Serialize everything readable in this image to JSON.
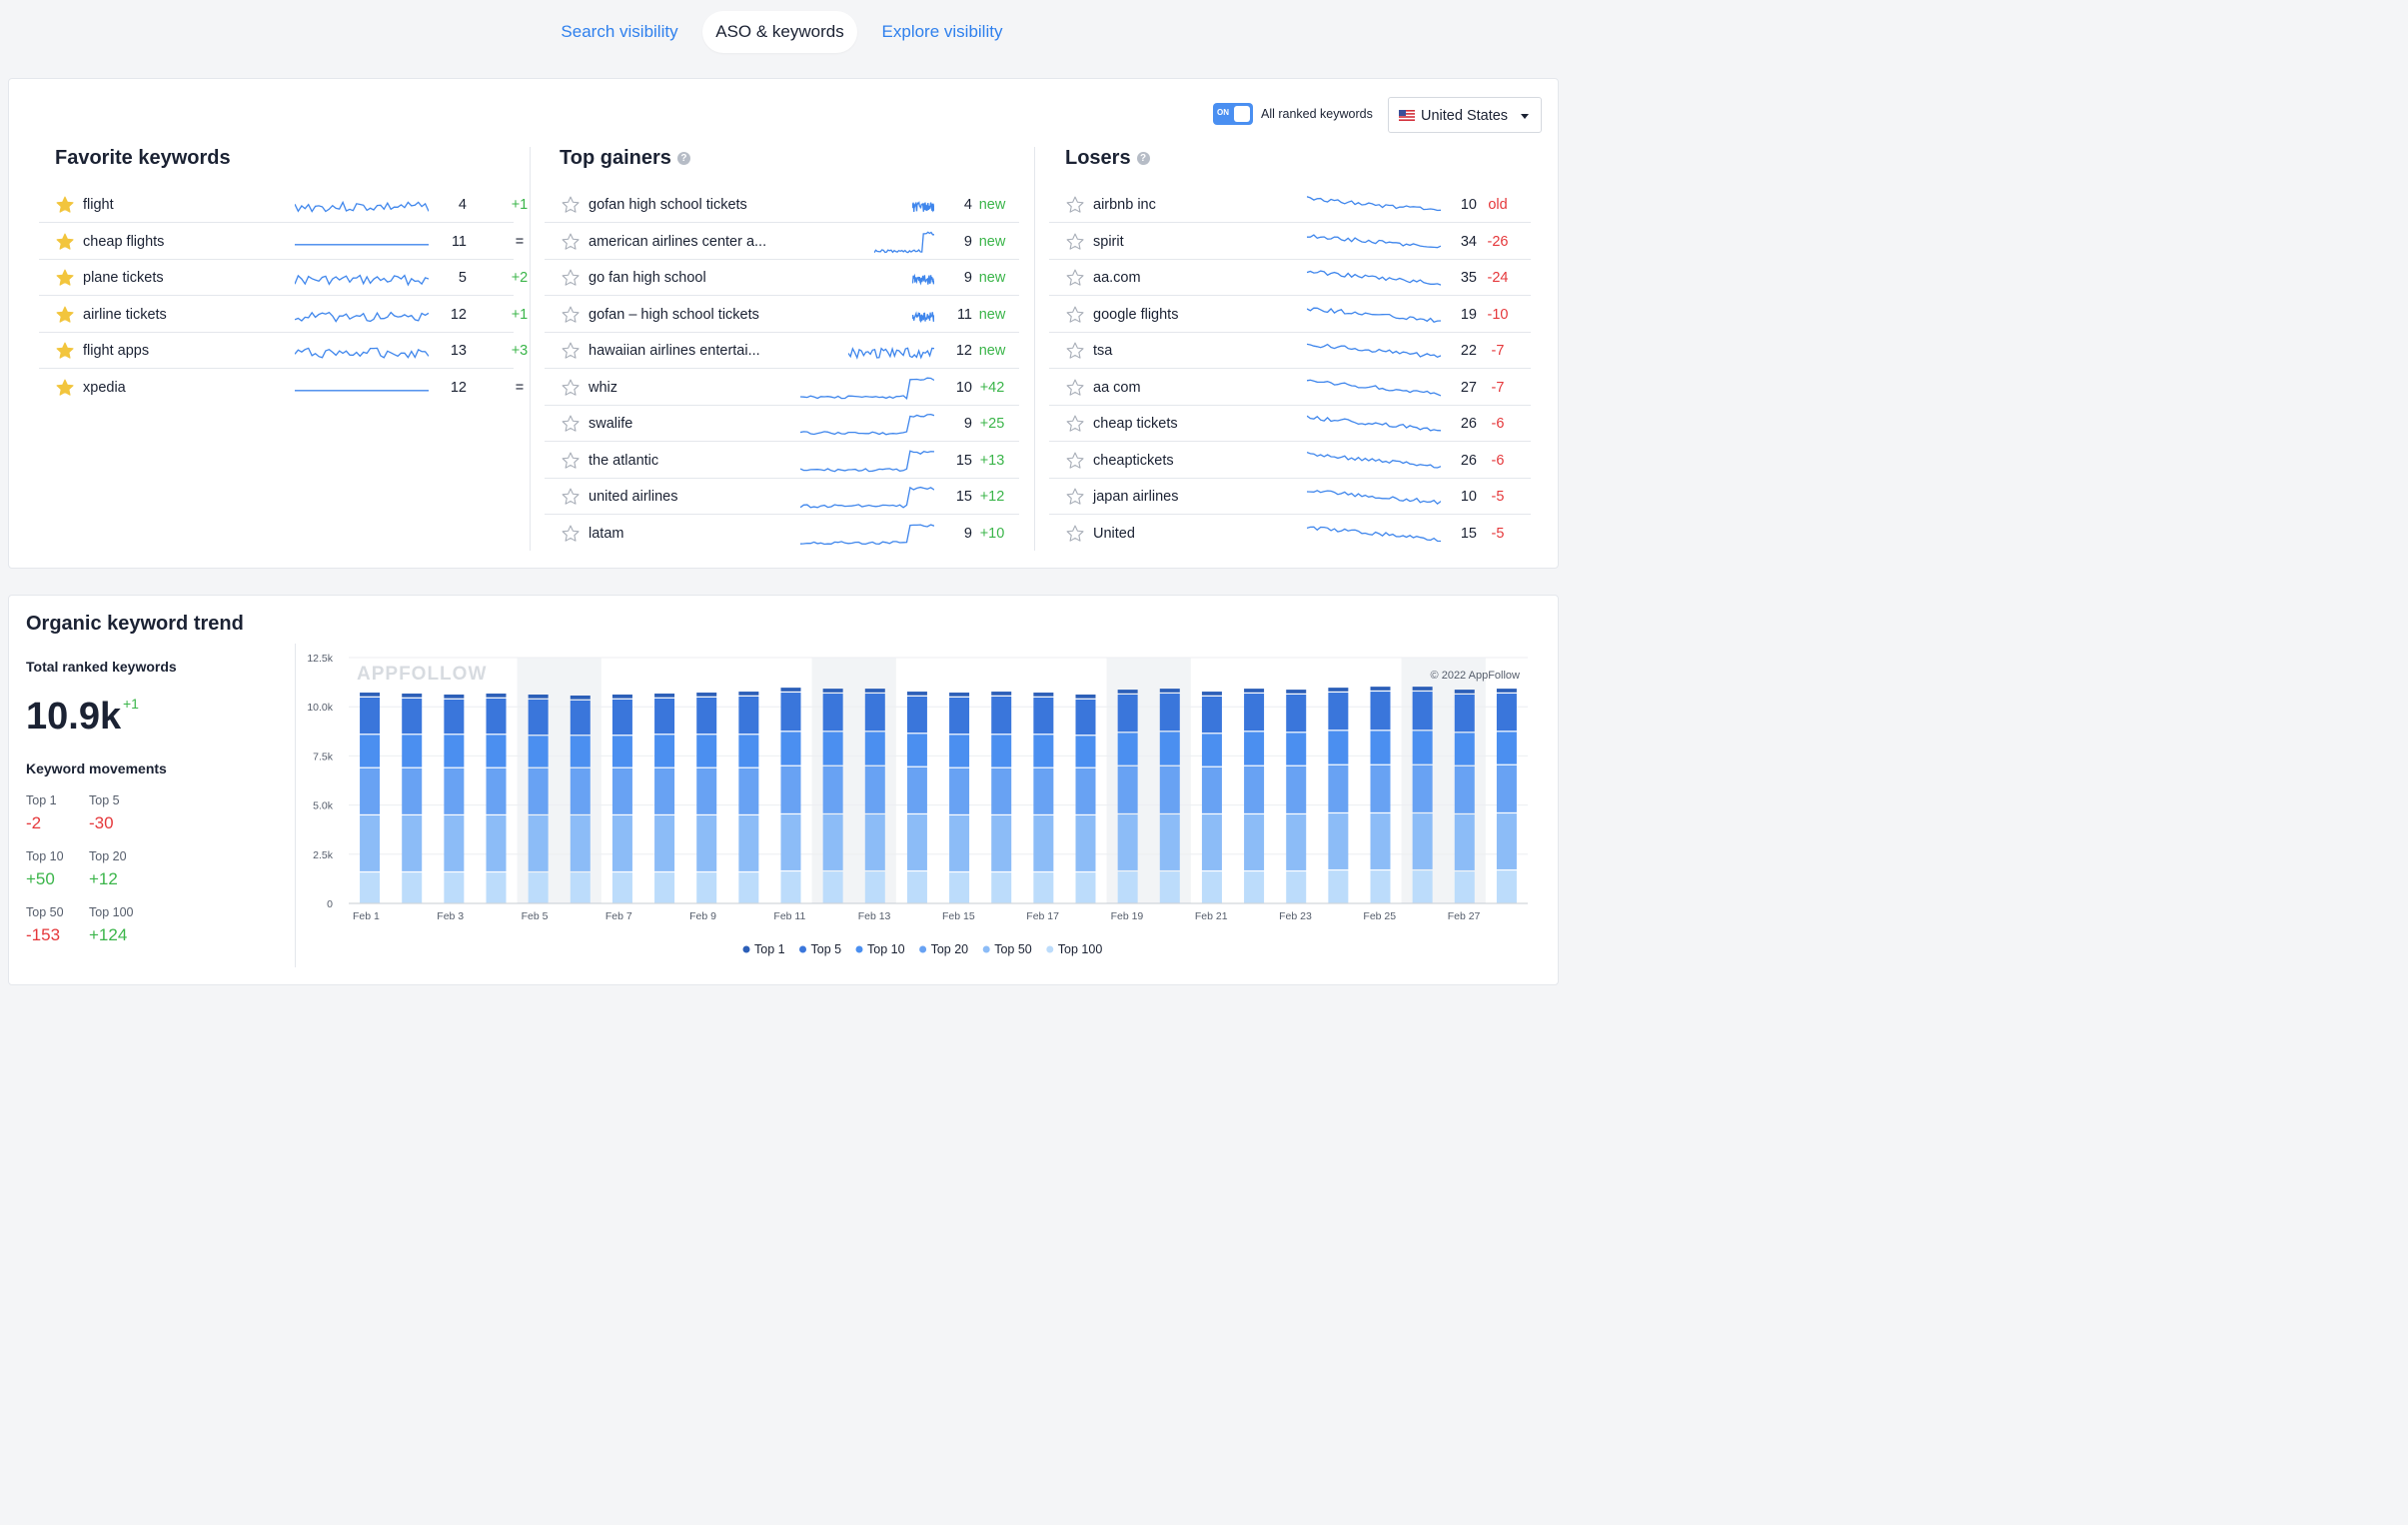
{
  "tabs": [
    {
      "label": "Search visibility",
      "active": false
    },
    {
      "label": "ASO & keywords",
      "active": true
    },
    {
      "label": "Explore visibility",
      "active": false
    }
  ],
  "toolbar": {
    "toggle_state": "ON",
    "toggle_label": "All ranked keywords",
    "country": "United States"
  },
  "favorites": {
    "title": "Favorite keywords",
    "rows": [
      {
        "keyword": "flight",
        "position": "4",
        "change": "+1",
        "tone": "green",
        "starred": true
      },
      {
        "keyword": "cheap flights",
        "position": "11",
        "change": "=",
        "tone": "dark",
        "starred": true
      },
      {
        "keyword": "plane tickets",
        "position": "5",
        "change": "+2",
        "tone": "green",
        "starred": true
      },
      {
        "keyword": "airline tickets",
        "position": "12",
        "change": "+1",
        "tone": "green",
        "starred": true
      },
      {
        "keyword": "flight apps",
        "position": "13",
        "change": "+3",
        "tone": "green",
        "starred": true
      },
      {
        "keyword": "xpedia",
        "position": "12",
        "change": "=",
        "tone": "dark",
        "starred": true
      }
    ]
  },
  "gainers": {
    "title": "Top gainers",
    "rows": [
      {
        "keyword": "gofan high school tickets",
        "position": "4",
        "change": "new",
        "tone": "green"
      },
      {
        "keyword": "american airlines center a...",
        "position": "9",
        "change": "new",
        "tone": "green"
      },
      {
        "keyword": "go fan high school",
        "position": "9",
        "change": "new",
        "tone": "green"
      },
      {
        "keyword": "gofan – high school tickets",
        "position": "11",
        "change": "new",
        "tone": "green"
      },
      {
        "keyword": "hawaiian airlines entertai...",
        "position": "12",
        "change": "new",
        "tone": "green"
      },
      {
        "keyword": "whiz",
        "position": "10",
        "change": "+42",
        "tone": "green"
      },
      {
        "keyword": "swalife",
        "position": "9",
        "change": "+25",
        "tone": "green"
      },
      {
        "keyword": "the atlantic",
        "position": "15",
        "change": "+13",
        "tone": "green"
      },
      {
        "keyword": "united airlines",
        "position": "15",
        "change": "+12",
        "tone": "green"
      },
      {
        "keyword": "latam",
        "position": "9",
        "change": "+10",
        "tone": "green"
      }
    ]
  },
  "losers": {
    "title": "Losers",
    "rows": [
      {
        "keyword": "airbnb inc",
        "position": "10",
        "change": "old",
        "tone": "red"
      },
      {
        "keyword": "spirit",
        "position": "34",
        "change": "-26",
        "tone": "red"
      },
      {
        "keyword": "aa.com",
        "position": "35",
        "change": "-24",
        "tone": "red"
      },
      {
        "keyword": "google flights",
        "position": "19",
        "change": "-10",
        "tone": "red"
      },
      {
        "keyword": "tsa",
        "position": "22",
        "change": "-7",
        "tone": "red"
      },
      {
        "keyword": "aa com",
        "position": "27",
        "change": "-7",
        "tone": "red"
      },
      {
        "keyword": "cheap tickets",
        "position": "26",
        "change": "-6",
        "tone": "red"
      },
      {
        "keyword": "cheaptickets",
        "position": "26",
        "change": "-6",
        "tone": "red"
      },
      {
        "keyword": "japan airlines",
        "position": "10",
        "change": "-5",
        "tone": "red"
      },
      {
        "keyword": "United",
        "position": "15",
        "change": "-5",
        "tone": "red"
      }
    ]
  },
  "trend": {
    "title": "Organic keyword trend",
    "total_label": "Total ranked keywords",
    "total_value": "10.9k",
    "total_change": "+1",
    "movements_label": "Keyword movements",
    "movements": [
      {
        "label": "Top 1",
        "value": "-2",
        "tone": "red"
      },
      {
        "label": "Top 5",
        "value": "-30",
        "tone": "red"
      },
      {
        "label": "Top 10",
        "value": "+50",
        "tone": "green"
      },
      {
        "label": "Top 20",
        "value": "+12",
        "tone": "green"
      },
      {
        "label": "Top 50",
        "value": "-153",
        "tone": "red"
      },
      {
        "label": "Top 100",
        "value": "+124",
        "tone": "green"
      }
    ]
  },
  "chart_data": {
    "type": "bar",
    "stacked": true,
    "watermark": "APPFOLLOW",
    "credit": "© 2022 AppFollow",
    "y_ticks": [
      "0",
      "2.5k",
      "5.0k",
      "7.5k",
      "10.0k",
      "12.5k"
    ],
    "ylim": [
      0,
      12500
    ],
    "x_ticks": [
      "Feb 1",
      "Feb 3",
      "Feb 5",
      "Feb 7",
      "Feb 9",
      "Feb 11",
      "Feb 13",
      "Feb 15",
      "Feb 17",
      "Feb 19",
      "Feb 21",
      "Feb 23",
      "Feb 25",
      "Feb 27"
    ],
    "categories": [
      "Feb 1",
      "Feb 2",
      "Feb 3",
      "Feb 4",
      "Feb 5",
      "Feb 6",
      "Feb 7",
      "Feb 8",
      "Feb 9",
      "Feb 10",
      "Feb 11",
      "Feb 12",
      "Feb 13",
      "Feb 14",
      "Feb 15",
      "Feb 16",
      "Feb 17",
      "Feb 18",
      "Feb 19",
      "Feb 20",
      "Feb 21",
      "Feb 22",
      "Feb 23",
      "Feb 24",
      "Feb 25",
      "Feb 26",
      "Feb 27",
      "Feb 28"
    ],
    "legend_position": "bottom-center",
    "series": [
      {
        "name": "Top 1",
        "color": "#2c5fb8",
        "values": [
          250,
          250,
          250,
          250,
          250,
          250,
          250,
          250,
          250,
          250,
          250,
          250,
          250,
          250,
          250,
          250,
          250,
          250,
          250,
          250,
          250,
          250,
          250,
          250,
          250,
          250,
          250,
          250
        ]
      },
      {
        "name": "Top 5",
        "color": "#3a76db",
        "values": [
          1900,
          1850,
          1800,
          1850,
          1850,
          1800,
          1850,
          1850,
          1900,
          1950,
          2000,
          1950,
          1950,
          1900,
          1900,
          1950,
          1900,
          1850,
          1950,
          1950,
          1900,
          1950,
          1950,
          1950,
          2000,
          2000,
          1950,
          1950
        ]
      },
      {
        "name": "Top 10",
        "color": "#4b8ff0",
        "values": [
          1700,
          1700,
          1700,
          1700,
          1650,
          1650,
          1650,
          1700,
          1700,
          1700,
          1750,
          1750,
          1750,
          1700,
          1700,
          1700,
          1700,
          1650,
          1700,
          1750,
          1700,
          1750,
          1700,
          1750,
          1750,
          1750,
          1700,
          1700
        ]
      },
      {
        "name": "Top 20",
        "color": "#68a2f3",
        "values": [
          2400,
          2400,
          2400,
          2400,
          2400,
          2400,
          2400,
          2400,
          2400,
          2400,
          2450,
          2450,
          2450,
          2400,
          2400,
          2400,
          2400,
          2400,
          2450,
          2450,
          2400,
          2450,
          2450,
          2450,
          2450,
          2450,
          2450,
          2450
        ]
      },
      {
        "name": "Top 50",
        "color": "#8cbcf7",
        "values": [
          2900,
          2900,
          2900,
          2900,
          2900,
          2900,
          2900,
          2900,
          2900,
          2900,
          2900,
          2900,
          2900,
          2900,
          2900,
          2900,
          2900,
          2900,
          2900,
          2900,
          2900,
          2900,
          2900,
          2900,
          2900,
          2900,
          2900,
          2900
        ]
      },
      {
        "name": "Top 100",
        "color": "#bcdcfb",
        "values": [
          1600,
          1600,
          1600,
          1600,
          1600,
          1600,
          1600,
          1600,
          1600,
          1600,
          1650,
          1650,
          1650,
          1650,
          1600,
          1600,
          1600,
          1600,
          1650,
          1650,
          1650,
          1650,
          1650,
          1700,
          1700,
          1700,
          1650,
          1700
        ]
      }
    ]
  }
}
